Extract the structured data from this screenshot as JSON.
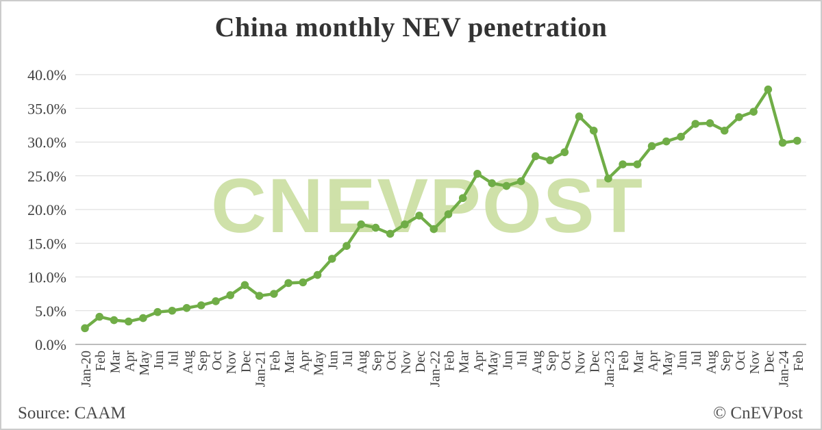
{
  "title": "China monthly NEV penetration",
  "footer": {
    "source_label": "Source: CAAM",
    "credit_label": "© CnEVPost"
  },
  "watermark_text": "CNEVPOST",
  "colors": {
    "line": "#70ad47",
    "marker": "#70ad47",
    "watermark": "#cbdfa2",
    "grid": "#d9d9d9",
    "axis": "#a6a6a6",
    "label_text": "#404040"
  },
  "chart_data": {
    "type": "line",
    "title": "China monthly NEV penetration",
    "xlabel": "",
    "ylabel": "",
    "ylim": [
      0,
      40
    ],
    "grid": true,
    "legend": false,
    "yticks": [
      {
        "value": 40,
        "label": "40.0%"
      },
      {
        "value": 35,
        "label": "35.0%"
      },
      {
        "value": 30,
        "label": "30.0%"
      },
      {
        "value": 25,
        "label": "25.0%"
      },
      {
        "value": 20,
        "label": "20.0%"
      },
      {
        "value": 15,
        "label": "15.0%"
      },
      {
        "value": 10,
        "label": "10.0%"
      },
      {
        "value": 5,
        "label": "5.0%"
      },
      {
        "value": 0,
        "label": "0.0%"
      }
    ],
    "x": [
      "Jan-20",
      "Feb",
      "Mar",
      "Apr",
      "May",
      "Jun",
      "Jul",
      "Aug",
      "Sep",
      "Oct",
      "Nov",
      "Dec",
      "Jan-21",
      "Feb",
      "Mar",
      "Apr",
      "May",
      "Jun",
      "Jul",
      "Aug",
      "Sep",
      "Oct",
      "Nov",
      "Dec",
      "Jan-22",
      "Feb",
      "Mar",
      "Apr",
      "May",
      "Jun",
      "Jul",
      "Aug",
      "Sep",
      "Oct",
      "Nov",
      "Dec",
      "Jan-23",
      "Feb",
      "Mar",
      "Apr",
      "May",
      "Jun",
      "Jul",
      "Aug",
      "Sep",
      "Oct",
      "Nov",
      "Dec",
      "Jan-24",
      "Feb"
    ],
    "series": [
      {
        "name": "NEV penetration",
        "values": [
          2.4,
          4.1,
          3.6,
          3.4,
          3.9,
          4.8,
          5.0,
          5.4,
          5.8,
          6.4,
          7.3,
          8.8,
          7.2,
          7.5,
          9.1,
          9.2,
          10.3,
          12.7,
          14.6,
          17.8,
          17.3,
          16.4,
          17.8,
          19.1,
          17.1,
          19.3,
          21.7,
          25.3,
          23.9,
          23.5,
          24.2,
          27.9,
          27.3,
          28.5,
          33.8,
          31.7,
          24.6,
          26.7,
          26.7,
          29.4,
          30.1,
          30.8,
          32.7,
          32.8,
          31.7,
          33.7,
          34.5,
          37.8,
          29.9,
          30.2
        ]
      }
    ]
  }
}
